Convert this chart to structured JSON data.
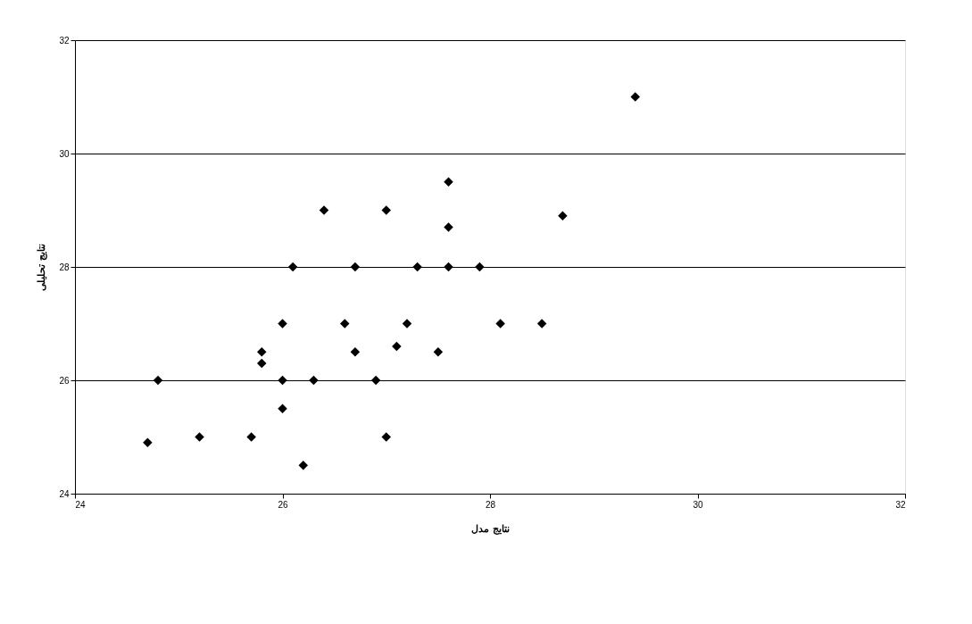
{
  "chart_data": {
    "type": "scatter",
    "xlabel": "نتایج مدل",
    "ylabel": "نتایج تحلیلی",
    "x": [
      26.1,
      26.7,
      27.3,
      27.6,
      27.9,
      26.0,
      26.6,
      27.2,
      25.8,
      25.8,
      26.7,
      27.1,
      27.5,
      24.8,
      26.0,
      26.3,
      26.9,
      26.0,
      24.7,
      25.2,
      25.7,
      27.0,
      26.2,
      28.1,
      28.5,
      26.4,
      27.0,
      27.6,
      27.6,
      29.4,
      28.7
    ],
    "series": [
      {
        "color": "#000000",
        "values": [
          28,
          28,
          28,
          28,
          28,
          27,
          27,
          27,
          26.5,
          26.3,
          26.5,
          26.6,
          26.5,
          26,
          26,
          26,
          26,
          25.5,
          24.9,
          25,
          25,
          25,
          24.5,
          27,
          27,
          29,
          29,
          29.5,
          28.7,
          31,
          28.9
        ]
      }
    ],
    "xlim": [
      24,
      32
    ],
    "xticks": [
      24,
      26,
      28,
      30,
      32
    ],
    "ylim": [
      24,
      32
    ],
    "yticks": [
      24,
      26,
      28,
      30,
      32
    ],
    "grid": "y",
    "marker": "diamond",
    "legend": false
  }
}
